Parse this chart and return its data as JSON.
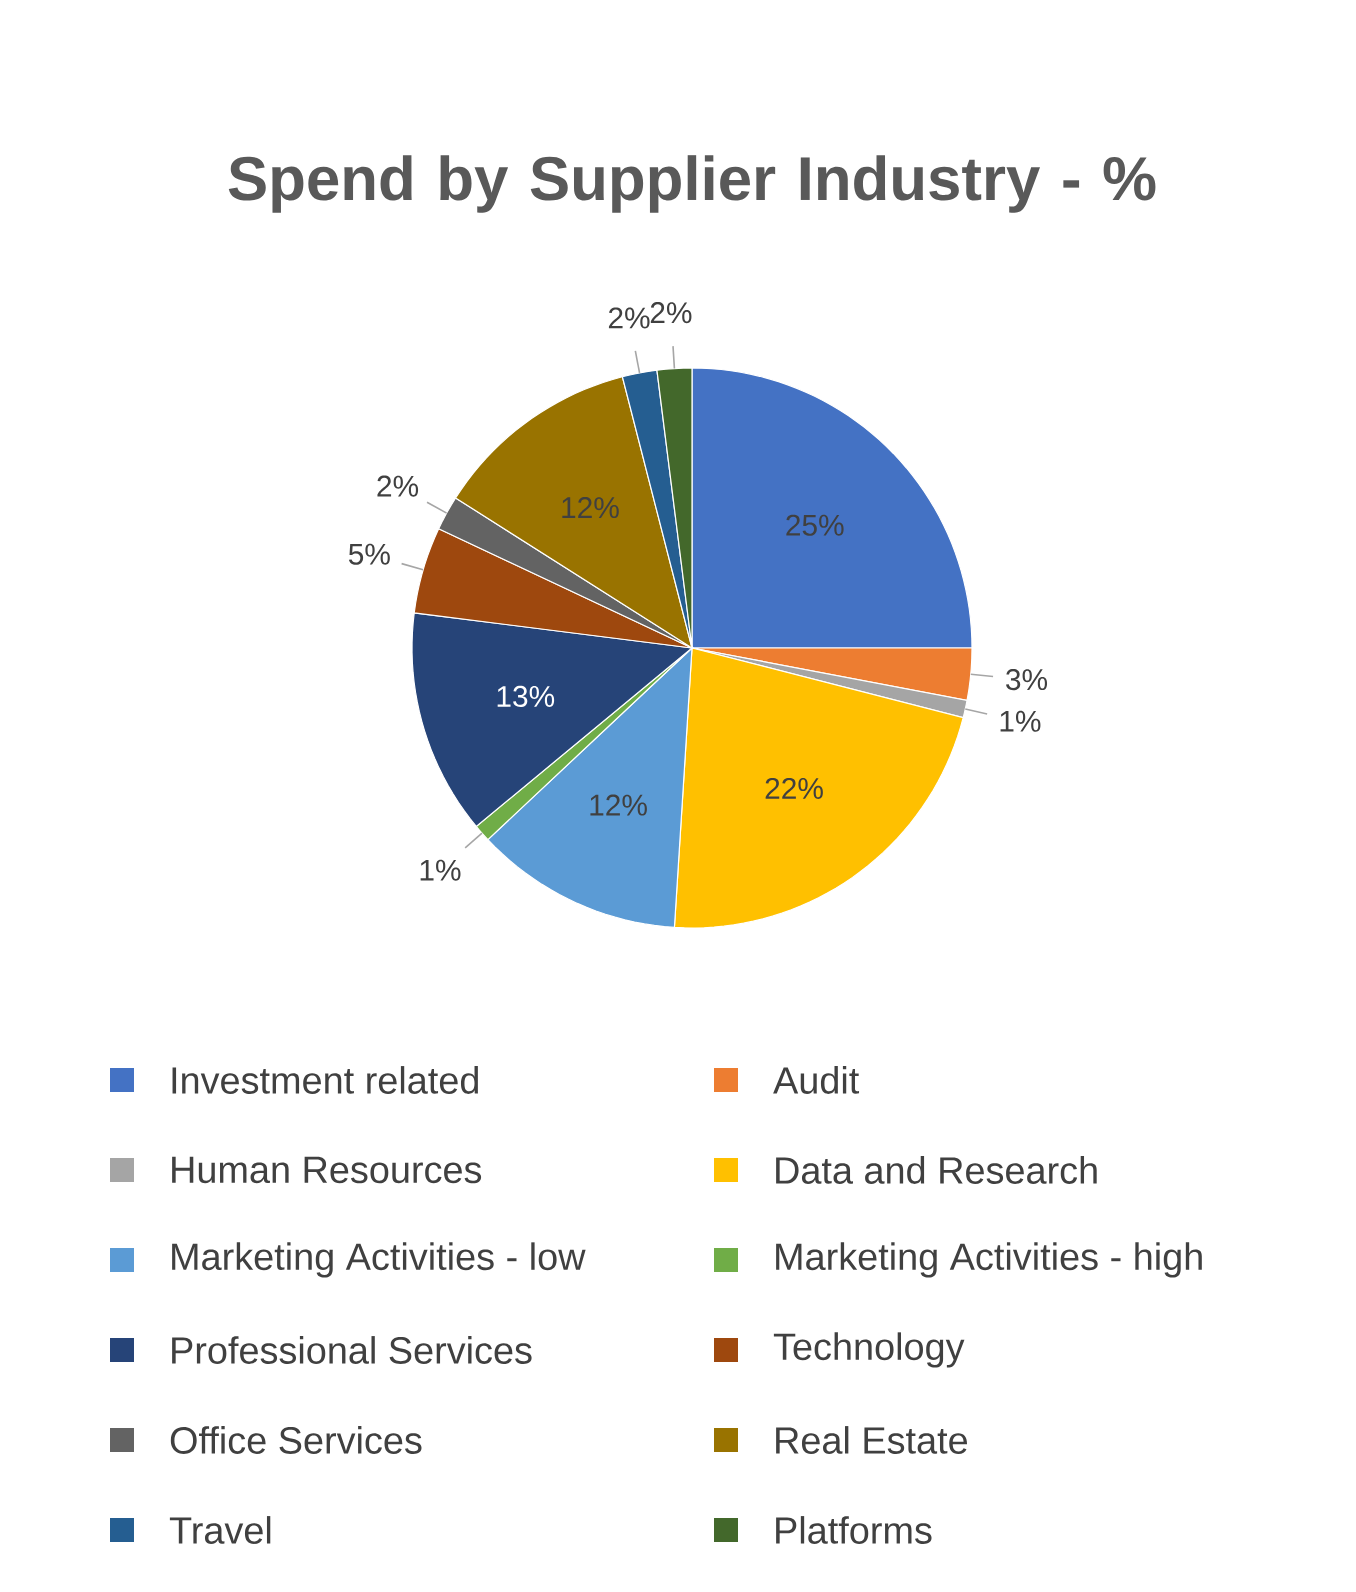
{
  "chart_data": {
    "type": "pie",
    "title": "Spend by Supplier Industry - %",
    "categories": [
      "Investment related",
      "Audit",
      "Human Resources",
      "Data and Research",
      "Marketing Activities - low",
      "Marketing Activities - high",
      "Professional Services",
      "Technology",
      "Office Services",
      "Real Estate",
      "Travel",
      "Platforms"
    ],
    "values": [
      25,
      3,
      1,
      22,
      12,
      1,
      13,
      5,
      2,
      12,
      2,
      2
    ],
    "colors": [
      "#4472c4",
      "#ed7d31",
      "#a5a5a5",
      "#ffc000",
      "#5b9bd5",
      "#70ad47",
      "#264478",
      "#9e480e",
      "#636363",
      "#997300",
      "#255e91",
      "#43682b"
    ],
    "value_labels": [
      "25%",
      "3%",
      "1%",
      "22%",
      "12%",
      "1%",
      "13%",
      "5%",
      "2%",
      "12%",
      "2%",
      "2%"
    ],
    "legend": "bottom"
  }
}
